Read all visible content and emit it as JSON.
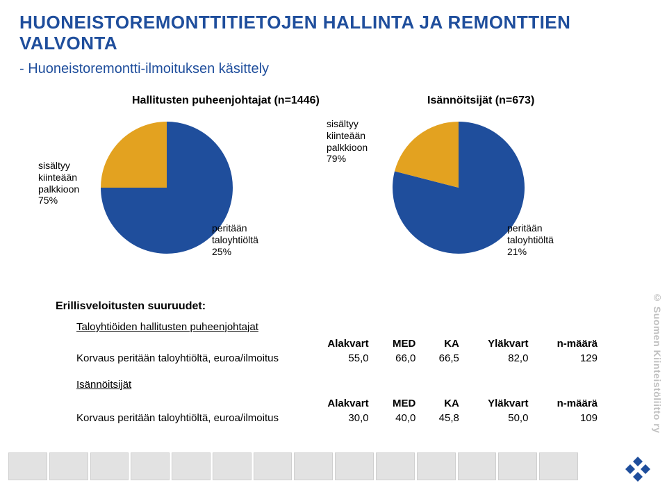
{
  "title_line1": "HUONEISTOREMONTTITIETOJEN HALLINTA JA REMONTTIEN",
  "title_line2": "VALVONTA",
  "subtitle": "- Huoneistoremontti-ilmoituksen käsittely",
  "group_left_label": "Hallitusten puheenjohtajat (n=1446)",
  "group_right_label": "Isännöitsijät (n=673)",
  "pie_left": {
    "slices": [
      {
        "label": "sisältyy\nkiinteään\npalkkioon\n75%",
        "pct": 75,
        "color": "#1f4e9c"
      },
      {
        "label": "peritään\ntaloyhtiöltä\n25%",
        "pct": 25,
        "color": "#e3a220"
      }
    ]
  },
  "pie_right": {
    "slices": [
      {
        "label": "sisältyy\nkiinteään\npalkkioon\n79%",
        "pct": 79,
        "color": "#1f4e9c"
      },
      {
        "label": "peritään\ntaloyhtiöltä\n21%",
        "pct": 21,
        "color": "#e3a220"
      }
    ]
  },
  "section_header": "Erillisveloitusten suuruudet:",
  "sub1": "Taloyhtiöiden hallitusten puheenjohtajat",
  "sub2": "Isännöitsijät",
  "columns": [
    "",
    "Alakvart",
    "MED",
    "KA",
    "Yläkvart",
    "n-määrä"
  ],
  "row_label": "Korvaus peritään taloyhtiöltä, euroa/ilmoitus",
  "table1_values": [
    "55,0",
    "66,0",
    "66,5",
    "82,0",
    "129"
  ],
  "table2_values": [
    "30,0",
    "40,0",
    "45,8",
    "50,0",
    "109"
  ],
  "side_text": "© Suomen Kiinteistöliitto ry",
  "colors": {
    "title": "#1f4e9c",
    "pie_main": "#1f4e9c",
    "pie_alt": "#e3a220",
    "logo": "#1f4e9c"
  }
}
